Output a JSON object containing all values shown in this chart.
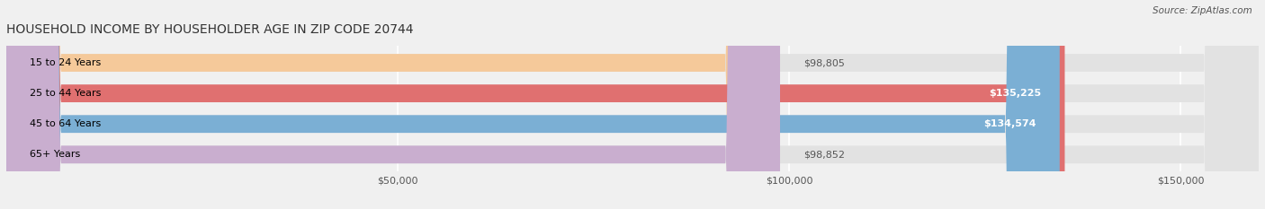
{
  "title": "HOUSEHOLD INCOME BY HOUSEHOLDER AGE IN ZIP CODE 20744",
  "source": "Source: ZipAtlas.com",
  "categories": [
    "15 to 24 Years",
    "25 to 44 Years",
    "45 to 64 Years",
    "65+ Years"
  ],
  "values": [
    98805,
    135225,
    134574,
    98852
  ],
  "bar_colors": [
    "#F5C99A",
    "#E07070",
    "#7BAFD4",
    "#C9AECF"
  ],
  "label_colors": [
    "#555555",
    "#ffffff",
    "#ffffff",
    "#555555"
  ],
  "background_color": "#f0f0f0",
  "bar_bg_color": "#e2e2e2",
  "xlim": [
    0,
    160000
  ],
  "xticks": [
    0,
    50000,
    100000,
    150000
  ],
  "xtick_labels": [
    "",
    "$50,000",
    "$100,000",
    "$150,000"
  ],
  "bar_height": 0.58,
  "figsize": [
    14.06,
    2.33
  ],
  "dpi": 100
}
